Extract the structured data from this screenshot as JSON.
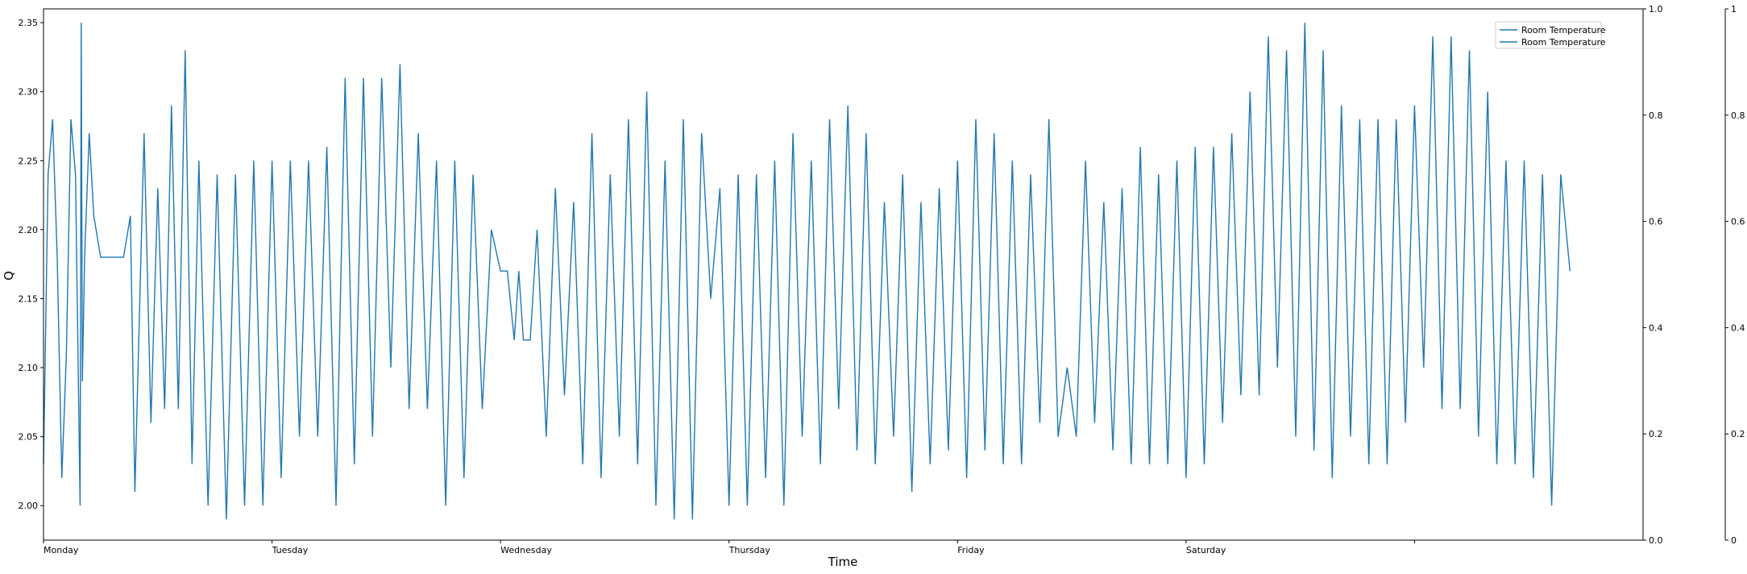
{
  "chart_data": {
    "type": "line",
    "xlabel": "Time",
    "ylabel": "Q",
    "x_ticks": [
      "Monday",
      "Tuesday",
      "Wednesday",
      "Thursday",
      "Friday",
      "Saturday",
      ""
    ],
    "ylim": [
      1.975,
      2.36
    ],
    "y_ticks": [
      "2.00",
      "2.05",
      "2.10",
      "2.15",
      "2.20",
      "2.25",
      "2.30",
      "2.35"
    ],
    "right_axis_1": {
      "ylim": [
        0,
        1
      ],
      "ticks": [
        "0.0",
        "0.2",
        "0.4",
        "0.6",
        "0.8",
        "1.0"
      ]
    },
    "right_axis_2": {
      "ylim": [
        0,
        1
      ],
      "ticks": [
        "0",
        "0.2",
        "0.4",
        "0.6",
        "0.8",
        "1"
      ]
    },
    "legend": {
      "location": "top-right",
      "entries": [
        "Room Temperature",
        "Room Temperature"
      ]
    },
    "color": "#1f77b4",
    "series": [
      {
        "name": "Room Temperature",
        "x_unit": "days since Monday 00:00",
        "points": [
          [
            0.0,
            2.03
          ],
          [
            0.02,
            2.24
          ],
          [
            0.04,
            2.28
          ],
          [
            0.06,
            2.18
          ],
          [
            0.08,
            2.02
          ],
          [
            0.1,
            2.11
          ],
          [
            0.12,
            2.28
          ],
          [
            0.14,
            2.24
          ],
          [
            0.16,
            2.0
          ],
          [
            0.165,
            2.35
          ],
          [
            0.17,
            2.09
          ],
          [
            0.18,
            2.18
          ],
          [
            0.2,
            2.27
          ],
          [
            0.22,
            2.21
          ],
          [
            0.25,
            2.18
          ],
          [
            0.3,
            2.18
          ],
          [
            0.35,
            2.18
          ],
          [
            0.38,
            2.21
          ],
          [
            0.4,
            2.01
          ],
          [
            0.44,
            2.27
          ],
          [
            0.47,
            2.06
          ],
          [
            0.5,
            2.23
          ],
          [
            0.53,
            2.07
          ],
          [
            0.56,
            2.29
          ],
          [
            0.59,
            2.07
          ],
          [
            0.62,
            2.33
          ],
          [
            0.65,
            2.03
          ],
          [
            0.68,
            2.25
          ],
          [
            0.72,
            2.0
          ],
          [
            0.76,
            2.24
          ],
          [
            0.8,
            1.99
          ],
          [
            0.84,
            2.24
          ],
          [
            0.88,
            2.0
          ],
          [
            0.92,
            2.25
          ],
          [
            0.96,
            2.0
          ],
          [
            1.0,
            2.25
          ],
          [
            1.04,
            2.02
          ],
          [
            1.08,
            2.25
          ],
          [
            1.12,
            2.05
          ],
          [
            1.16,
            2.25
          ],
          [
            1.2,
            2.05
          ],
          [
            1.24,
            2.26
          ],
          [
            1.28,
            2.0
          ],
          [
            1.32,
            2.31
          ],
          [
            1.36,
            2.03
          ],
          [
            1.4,
            2.31
          ],
          [
            1.44,
            2.05
          ],
          [
            1.48,
            2.31
          ],
          [
            1.52,
            2.1
          ],
          [
            1.56,
            2.32
          ],
          [
            1.6,
            2.07
          ],
          [
            1.64,
            2.27
          ],
          [
            1.68,
            2.07
          ],
          [
            1.72,
            2.25
          ],
          [
            1.76,
            2.0
          ],
          [
            1.8,
            2.25
          ],
          [
            1.84,
            2.02
          ],
          [
            1.88,
            2.24
          ],
          [
            1.92,
            2.07
          ],
          [
            1.96,
            2.2
          ],
          [
            2.0,
            2.17
          ],
          [
            2.03,
            2.17
          ],
          [
            2.06,
            2.12
          ],
          [
            2.08,
            2.17
          ],
          [
            2.1,
            2.12
          ],
          [
            2.13,
            2.12
          ],
          [
            2.16,
            2.2
          ],
          [
            2.2,
            2.05
          ],
          [
            2.24,
            2.23
          ],
          [
            2.28,
            2.08
          ],
          [
            2.32,
            2.22
          ],
          [
            2.36,
            2.03
          ],
          [
            2.4,
            2.27
          ],
          [
            2.44,
            2.02
          ],
          [
            2.48,
            2.24
          ],
          [
            2.52,
            2.05
          ],
          [
            2.56,
            2.28
          ],
          [
            2.6,
            2.03
          ],
          [
            2.64,
            2.3
          ],
          [
            2.68,
            2.0
          ],
          [
            2.72,
            2.25
          ],
          [
            2.76,
            1.99
          ],
          [
            2.8,
            2.28
          ],
          [
            2.84,
            1.99
          ],
          [
            2.88,
            2.27
          ],
          [
            2.92,
            2.15
          ],
          [
            2.96,
            2.23
          ],
          [
            3.0,
            2.0
          ],
          [
            3.04,
            2.24
          ],
          [
            3.08,
            2.0
          ],
          [
            3.12,
            2.24
          ],
          [
            3.16,
            2.02
          ],
          [
            3.2,
            2.25
          ],
          [
            3.24,
            2.0
          ],
          [
            3.28,
            2.27
          ],
          [
            3.32,
            2.05
          ],
          [
            3.36,
            2.25
          ],
          [
            3.4,
            2.03
          ],
          [
            3.44,
            2.28
          ],
          [
            3.48,
            2.07
          ],
          [
            3.52,
            2.29
          ],
          [
            3.56,
            2.04
          ],
          [
            3.6,
            2.27
          ],
          [
            3.64,
            2.03
          ],
          [
            3.68,
            2.22
          ],
          [
            3.72,
            2.05
          ],
          [
            3.76,
            2.24
          ],
          [
            3.8,
            2.01
          ],
          [
            3.84,
            2.22
          ],
          [
            3.88,
            2.03
          ],
          [
            3.92,
            2.23
          ],
          [
            3.96,
            2.04
          ],
          [
            4.0,
            2.25
          ],
          [
            4.04,
            2.02
          ],
          [
            4.08,
            2.28
          ],
          [
            4.12,
            2.04
          ],
          [
            4.16,
            2.27
          ],
          [
            4.2,
            2.03
          ],
          [
            4.24,
            2.25
          ],
          [
            4.28,
            2.03
          ],
          [
            4.32,
            2.24
          ],
          [
            4.36,
            2.06
          ],
          [
            4.4,
            2.28
          ],
          [
            4.44,
            2.05
          ],
          [
            4.48,
            2.1
          ],
          [
            4.52,
            2.05
          ],
          [
            4.56,
            2.25
          ],
          [
            4.6,
            2.06
          ],
          [
            4.64,
            2.22
          ],
          [
            4.68,
            2.04
          ],
          [
            4.72,
            2.23
          ],
          [
            4.76,
            2.03
          ],
          [
            4.8,
            2.26
          ],
          [
            4.84,
            2.03
          ],
          [
            4.88,
            2.24
          ],
          [
            4.92,
            2.03
          ],
          [
            4.96,
            2.25
          ],
          [
            5.0,
            2.02
          ],
          [
            5.04,
            2.26
          ],
          [
            5.08,
            2.03
          ],
          [
            5.12,
            2.26
          ],
          [
            5.16,
            2.06
          ],
          [
            5.2,
            2.27
          ],
          [
            5.24,
            2.08
          ],
          [
            5.28,
            2.3
          ],
          [
            5.32,
            2.08
          ],
          [
            5.36,
            2.34
          ],
          [
            5.4,
            2.1
          ],
          [
            5.44,
            2.33
          ],
          [
            5.48,
            2.05
          ],
          [
            5.52,
            2.35
          ],
          [
            5.56,
            2.04
          ],
          [
            5.6,
            2.33
          ],
          [
            5.64,
            2.02
          ],
          [
            5.68,
            2.29
          ],
          [
            5.72,
            2.05
          ],
          [
            5.76,
            2.28
          ],
          [
            5.8,
            2.03
          ],
          [
            5.84,
            2.28
          ],
          [
            5.88,
            2.03
          ],
          [
            5.92,
            2.28
          ],
          [
            5.96,
            2.06
          ],
          [
            6.0,
            2.29
          ],
          [
            6.04,
            2.1
          ],
          [
            6.08,
            2.34
          ],
          [
            6.12,
            2.07
          ],
          [
            6.16,
            2.34
          ],
          [
            6.2,
            2.07
          ],
          [
            6.24,
            2.33
          ],
          [
            6.28,
            2.05
          ],
          [
            6.32,
            2.3
          ],
          [
            6.36,
            2.03
          ],
          [
            6.4,
            2.25
          ],
          [
            6.44,
            2.03
          ],
          [
            6.48,
            2.25
          ],
          [
            6.52,
            2.02
          ],
          [
            6.56,
            2.24
          ],
          [
            6.6,
            2.0
          ],
          [
            6.64,
            2.24
          ],
          [
            6.68,
            2.17
          ]
        ]
      }
    ]
  }
}
